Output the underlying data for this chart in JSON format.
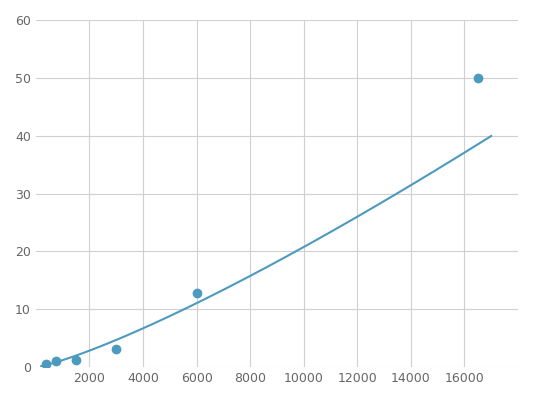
{
  "line_color": "#4d9abf",
  "marker_color": "#4d9abf",
  "marker_size": 6,
  "line_width": 1.5,
  "xlim": [
    0,
    18000
  ],
  "ylim": [
    0,
    60
  ],
  "xticks": [
    2000,
    4000,
    6000,
    8000,
    10000,
    12000,
    14000,
    16000
  ],
  "yticks": [
    0,
    10,
    20,
    30,
    40,
    50,
    60
  ],
  "grid_color": "#d0d0d0",
  "background_color": "#ffffff",
  "data_points_x": [
    375,
    750,
    1500,
    3000,
    6000,
    16500
  ],
  "data_points_y": [
    0.5,
    1.0,
    1.2,
    3.2,
    12.8,
    50.0
  ]
}
